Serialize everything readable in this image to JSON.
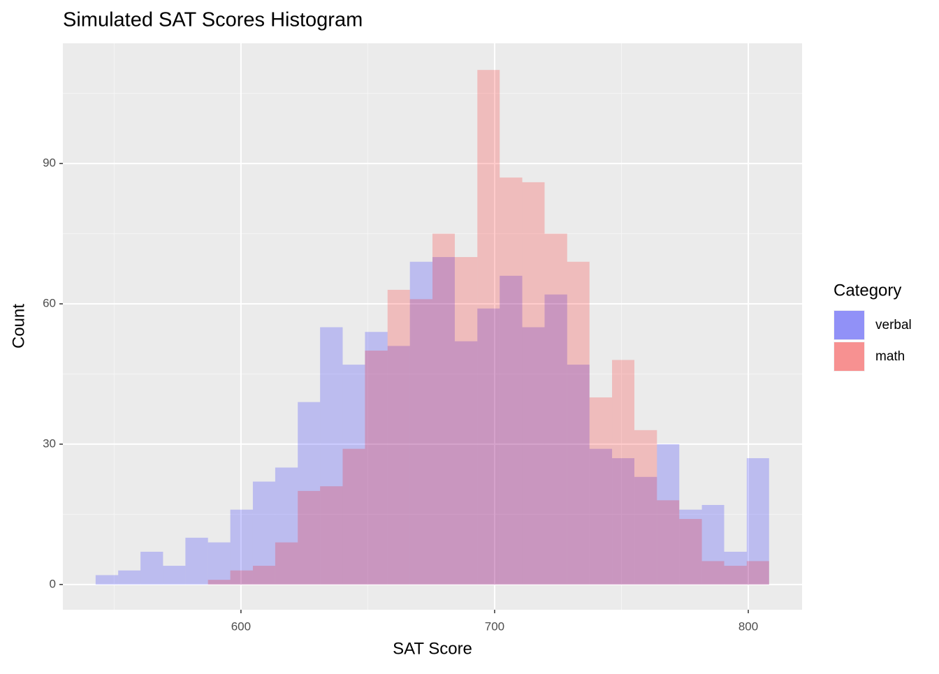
{
  "chart_data": {
    "type": "histogram",
    "title": "Simulated SAT Scores Histogram",
    "x_label": "SAT Score",
    "y_label": "Count",
    "legend_title": "Category",
    "bins": [
      542.7,
      551.6,
      560.4,
      569.3,
      578.1,
      587.0,
      595.8,
      604.7,
      613.5,
      622.4,
      631.2,
      640.1,
      648.9,
      657.8,
      666.6,
      675.5,
      684.3,
      693.2,
      702.0,
      710.9,
      719.7,
      728.6,
      737.4,
      746.3,
      755.1,
      764.0,
      772.8,
      781.7,
      790.5,
      799.4,
      808.2
    ],
    "series": [
      {
        "name": "verbal",
        "color": "#0000ff",
        "values": [
          2,
          3,
          7,
          4,
          10,
          9,
          16,
          22,
          25,
          39,
          55,
          47,
          54,
          51,
          69,
          70,
          52,
          59,
          66,
          55,
          62,
          47,
          29,
          27,
          23,
          30,
          16,
          17,
          7,
          27
        ]
      },
      {
        "name": "math",
        "color": "#ff0000",
        "values": [
          0,
          0,
          0,
          0,
          0,
          1,
          3,
          4,
          9,
          20,
          21,
          29,
          50,
          63,
          61,
          75,
          70,
          110,
          87,
          86,
          75,
          69,
          40,
          48,
          33,
          18,
          14,
          5,
          4,
          5
        ]
      }
    ],
    "xlim": [
      529.8,
      821.2
    ],
    "ylim": [
      -5.4,
      115.7
    ],
    "xticks": [
      600,
      700,
      800
    ],
    "yticks": [
      0,
      30,
      60,
      90
    ],
    "grid": true,
    "legend": "right"
  }
}
